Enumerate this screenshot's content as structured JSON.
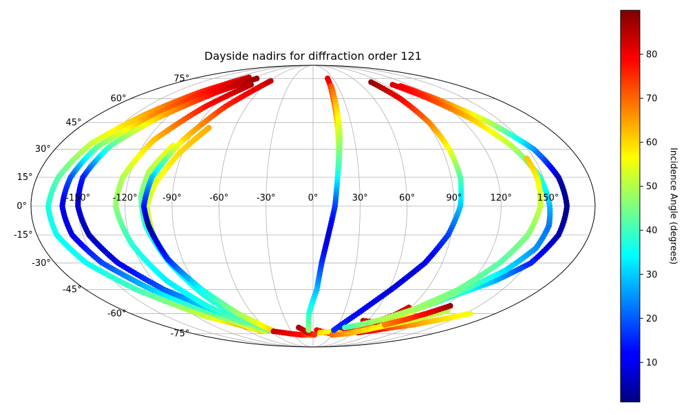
{
  "chart_data": {
    "type": "scatter",
    "projection": "mollweide",
    "title": "Dayside nadirs for diffraction order 121",
    "x_ticks": [
      "-150°",
      "-120°",
      "-90°",
      "-60°",
      "-30°",
      "0°",
      "30°",
      "60°",
      "90°",
      "120°",
      "150°"
    ],
    "x_tick_values": [
      -150,
      -120,
      -90,
      -60,
      -30,
      0,
      30,
      60,
      90,
      120,
      150
    ],
    "y_ticks": [
      "75°",
      "60°",
      "45°",
      "30°",
      "15°",
      "0°",
      "-15°",
      "-30°",
      "-45°",
      "-60°",
      "-75°"
    ],
    "y_tick_values": [
      75,
      60,
      45,
      30,
      15,
      0,
      -15,
      -30,
      -45,
      -60,
      -75
    ],
    "grid": true,
    "colorbar": {
      "label": "Incidence Angle (degrees)",
      "ticks": [
        "10",
        "20",
        "30",
        "40",
        "50",
        "60",
        "70",
        "80"
      ],
      "tick_values": [
        10,
        20,
        30,
        40,
        50,
        60,
        70,
        80
      ],
      "range": [
        1,
        90
      ],
      "colormap": "jet"
    },
    "tracks": [
      {
        "points": [
          [
            -101,
            76,
            82
          ],
          [
            -122,
            65,
            76
          ],
          [
            -141,
            50,
            64
          ],
          [
            -158,
            33,
            52
          ],
          [
            -166,
            15,
            42
          ],
          [
            -169,
            0,
            37
          ],
          [
            -167,
            -15,
            35
          ],
          [
            -158,
            -30,
            35
          ],
          [
            -140,
            -45,
            40
          ],
          [
            -110,
            -62,
            52
          ],
          [
            -73,
            -72,
            70
          ]
        ]
      },
      {
        "points": [
          [
            -97,
            75,
            85
          ],
          [
            -116,
            64,
            78
          ],
          [
            -135,
            48,
            66
          ],
          [
            -152,
            31,
            44
          ],
          [
            -158,
            15,
            20
          ],
          [
            -160,
            0,
            10
          ],
          [
            -157,
            -15,
            10
          ],
          [
            -147,
            -30,
            18
          ],
          [
            -128,
            -45,
            30
          ],
          [
            -96,
            -62,
            45
          ],
          [
            -72,
            -73,
            60
          ]
        ]
      },
      {
        "points": [
          [
            -85,
            75,
            88
          ],
          [
            -105,
            64,
            80
          ],
          [
            -127,
            48,
            62
          ],
          [
            -143,
            32,
            42
          ],
          [
            -150,
            15,
            15
          ],
          [
            -150,
            0,
            8
          ],
          [
            -146,
            -15,
            6
          ],
          [
            -136,
            -30,
            10
          ],
          [
            -118,
            -45,
            20
          ],
          [
            -90,
            -60,
            35
          ],
          [
            -68,
            -72,
            50
          ]
        ]
      },
      {
        "points": [
          [
            -78,
            70,
            86
          ],
          [
            -97,
            55,
            78
          ],
          [
            -115,
            35,
            62
          ],
          [
            -124,
            15,
            50
          ],
          [
            -126,
            0,
            47
          ],
          [
            -120,
            -20,
            38
          ],
          [
            -110,
            -40,
            33
          ],
          [
            -96,
            -55,
            36
          ],
          [
            -80,
            -66,
            44
          ],
          [
            -65,
            -73,
            55
          ]
        ]
      },
      {
        "points": [
          [
            -80,
            42,
            64
          ],
          [
            -92,
            28,
            60
          ],
          [
            -102,
            12,
            55
          ],
          [
            -106,
            0,
            53
          ],
          [
            -104,
            -15,
            50
          ],
          [
            -98,
            -32,
            42
          ],
          [
            -88,
            -48,
            36
          ],
          [
            -74,
            -62,
            30
          ],
          [
            -60,
            -72,
            25
          ]
        ]
      },
      {
        "points": [
          [
            -99,
            32,
            56
          ],
          [
            -108,
            18,
            50
          ],
          [
            -110,
            5,
            44
          ],
          [
            -108,
            -10,
            38
          ],
          [
            -100,
            -30,
            33
          ],
          [
            -90,
            -48,
            36
          ],
          [
            -78,
            -62,
            40
          ],
          [
            -62,
            -72,
            45
          ]
        ]
      },
      {
        "points": [
          [
            -59,
            73,
            84
          ],
          [
            -79,
            55,
            76
          ],
          [
            -94,
            35,
            60
          ],
          [
            -105,
            15,
            30
          ],
          [
            -108,
            0,
            14
          ],
          [
            -106,
            -10,
            3
          ],
          [
            -100,
            -28,
            15
          ],
          [
            -88,
            -45,
            35
          ],
          [
            -74,
            -60,
            48
          ],
          [
            -56,
            -72,
            60
          ]
        ]
      },
      {
        "points": [
          [
            -55,
            -73,
            84
          ],
          [
            -44,
            -74,
            82
          ],
          [
            -33,
            -75,
            80
          ],
          [
            -18,
            -76,
            78
          ],
          [
            -6,
            -76,
            72
          ],
          [
            -2,
            -76,
            68
          ]
        ]
      },
      {
        "points": [
          [
            -18,
            -70,
            86
          ],
          [
            -8,
            -74,
            82
          ],
          [
            2,
            -76,
            75
          ]
        ]
      },
      {
        "points": [
          [
            22,
            75,
            82
          ],
          [
            20,
            60,
            72
          ],
          [
            19,
            45,
            60
          ],
          [
            18,
            30,
            48
          ],
          [
            16,
            15,
            35
          ],
          [
            14,
            0,
            18
          ],
          [
            10,
            -15,
            8
          ],
          [
            6,
            -30,
            16
          ],
          [
            3,
            -45,
            28
          ],
          [
            -4,
            -60,
            38
          ],
          [
            -6,
            -72,
            46
          ]
        ]
      },
      {
        "points": [
          [
            22,
            69,
            72
          ],
          [
            21,
            56,
            62
          ],
          [
            20,
            40,
            52
          ],
          [
            17,
            20,
            40
          ]
        ]
      },
      {
        "points": [
          [
            5,
            -72,
            80
          ],
          [
            18,
            -74,
            80
          ],
          [
            32,
            -75,
            82
          ],
          [
            52,
            -74,
            80
          ],
          [
            68,
            -73,
            78
          ],
          [
            85,
            -70,
            82
          ],
          [
            104,
            -68,
            86
          ]
        ]
      },
      {
        "points": [
          [
            10,
            -74,
            60
          ],
          [
            30,
            -73,
            55
          ],
          [
            50,
            -70,
            50
          ],
          [
            68,
            -66,
            45
          ],
          [
            82,
            -62,
            44
          ],
          [
            100,
            -56,
            40
          ],
          [
            118,
            -48,
            38
          ],
          [
            137,
            -40,
            28
          ],
          [
            152,
            -30,
            15
          ],
          [
            160,
            -15,
            5
          ],
          [
            162,
            0,
            2
          ],
          [
            160,
            15,
            5
          ],
          [
            154,
            30,
            25
          ],
          [
            140,
            45,
            50
          ],
          [
            121,
            60,
            70
          ],
          [
            107,
            69,
            80
          ]
        ]
      },
      {
        "points": [
          [
            35,
            -70,
            85
          ],
          [
            48,
            -72,
            80
          ],
          [
            60,
            -73,
            75
          ],
          [
            72,
            -70,
            70
          ],
          [
            82,
            -65,
            62
          ],
          [
            95,
            -58,
            55
          ],
          [
            110,
            -50,
            47
          ],
          [
            125,
            -42,
            40
          ],
          [
            138,
            -34,
            32
          ],
          [
            149,
            -22,
            25
          ],
          [
            152,
            -10,
            22
          ],
          [
            151,
            0,
            28
          ],
          [
            148,
            15,
            38
          ],
          [
            140,
            32,
            50
          ],
          [
            128,
            48,
            62
          ],
          [
            112,
            62,
            76
          ],
          [
            100,
            70,
            82
          ]
        ]
      },
      {
        "points": [
          [
            65,
            -74,
            85
          ],
          [
            85,
            -72,
            80
          ],
          [
            100,
            -70,
            72
          ],
          [
            118,
            -68,
            66
          ],
          [
            138,
            -64,
            60
          ],
          [
            155,
            -60,
            55
          ]
        ]
      },
      {
        "points": [
          [
            55,
            -65,
            85
          ],
          [
            70,
            -66,
            80
          ],
          [
            82,
            -61,
            86
          ],
          [
            88,
            -56,
            82
          ]
        ]
      },
      {
        "points": [
          [
            30,
            -76,
            70
          ],
          [
            50,
            -75,
            65
          ],
          [
            70,
            -72,
            60
          ],
          [
            90,
            -68,
            55
          ],
          [
            110,
            -64,
            52
          ],
          [
            128,
            -58,
            50
          ]
        ]
      },
      {
        "points": [
          [
            78,
            72,
            88
          ],
          [
            86,
            60,
            80
          ],
          [
            92,
            45,
            68
          ],
          [
            95,
            30,
            56
          ],
          [
            96,
            15,
            42
          ],
          [
            94,
            0,
            30
          ],
          [
            88,
            -15,
            18
          ],
          [
            78,
            -30,
            10
          ],
          [
            62,
            -45,
            9
          ],
          [
            44,
            -60,
            12
          ],
          [
            28,
            -72,
            16
          ]
        ]
      },
      {
        "points": [
          [
            145,
            25,
            62
          ],
          [
            146,
            15,
            58
          ],
          [
            145,
            0,
            52
          ],
          [
            140,
            -15,
            46
          ],
          [
            130,
            -30,
            42
          ],
          [
            115,
            -45,
            44
          ],
          [
            95,
            -57,
            48
          ],
          [
            75,
            -64,
            50
          ],
          [
            55,
            -68,
            45
          ],
          [
            40,
            -70,
            40
          ]
        ]
      },
      {
        "points": [
          [
            124,
            -55,
            88
          ],
          [
            112,
            -60,
            80
          ],
          [
            100,
            -64,
            74
          ],
          [
            85,
            -68,
            68
          ]
        ]
      }
    ]
  }
}
